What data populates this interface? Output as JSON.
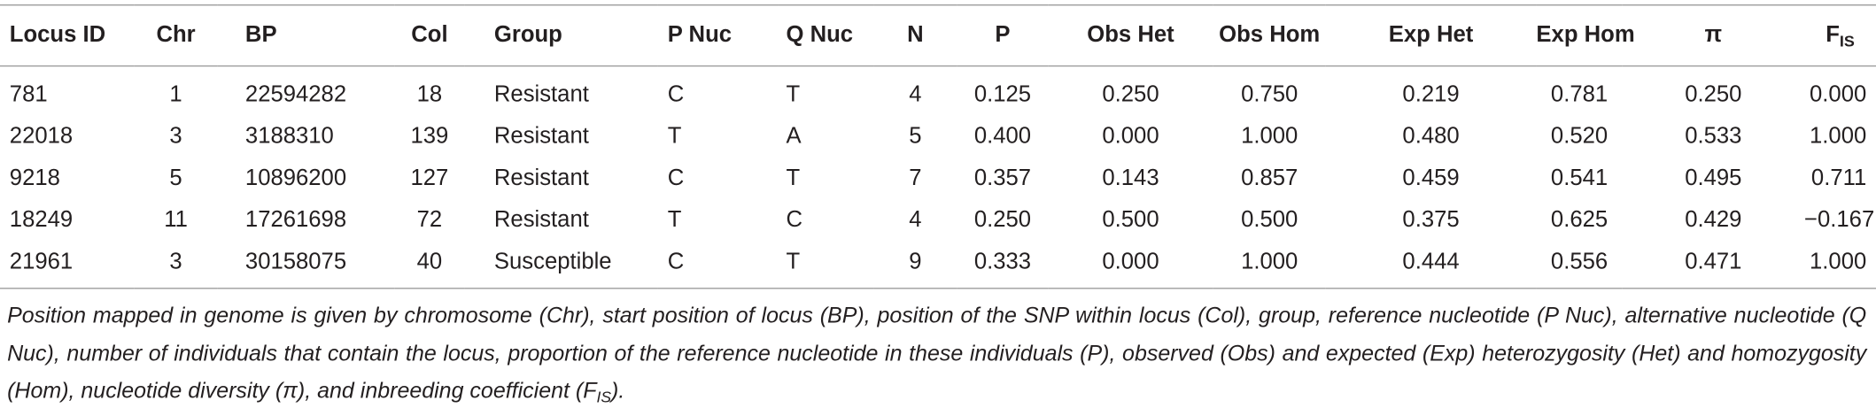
{
  "table": {
    "columns": [
      "Locus ID",
      "Chr",
      "BP",
      "Col",
      "Group",
      "P Nuc",
      "Q Nuc",
      "N",
      "P",
      "Obs Het",
      "Obs Hom",
      "Exp Het",
      "Exp Hom",
      "π",
      {
        "text": "F",
        "sub": "IS"
      }
    ],
    "rows": [
      [
        "781",
        "1",
        "22594282",
        "18",
        "Resistant",
        "C",
        "T",
        "4",
        "0.125",
        "0.250",
        "0.750",
        "0.219",
        "0.781",
        "0.250",
        "0.000"
      ],
      [
        "22018",
        "3",
        "3188310",
        "139",
        "Resistant",
        "T",
        "A",
        "5",
        "0.400",
        "0.000",
        "1.000",
        "0.480",
        "0.520",
        "0.533",
        "1.000"
      ],
      [
        "9218",
        "5",
        "10896200",
        "127",
        "Resistant",
        "C",
        "T",
        "7",
        "0.357",
        "0.143",
        "0.857",
        "0.459",
        "0.541",
        "0.495",
        "0.711"
      ],
      [
        "18249",
        "11",
        "17261698",
        "72",
        "Resistant",
        "T",
        "C",
        "4",
        "0.250",
        "0.500",
        "0.500",
        "0.375",
        "0.625",
        "0.429",
        "−0.167"
      ],
      [
        "21961",
        "3",
        "30158075",
        "40",
        "Susceptible",
        "C",
        "T",
        "9",
        "0.333",
        "0.000",
        "1.000",
        "0.444",
        "0.556",
        "0.471",
        "1.000"
      ]
    ]
  },
  "caption": {
    "text": "Position mapped in genome is given by chromosome (Chr), start position of locus (BP), position of the SNP within locus (Col), group, reference nucleotide (P Nuc), alternative nucleotide (Q Nuc), number of individuals that contain the locus, proportion of the reference nucleotide in these individuals (P), observed (Obs) and expected (Exp) heterozygosity (Het) and homozygosity (Hom), nucleotide diversity (π), and inbreeding coefficient (F",
    "sub": "IS",
    "end": ")."
  }
}
